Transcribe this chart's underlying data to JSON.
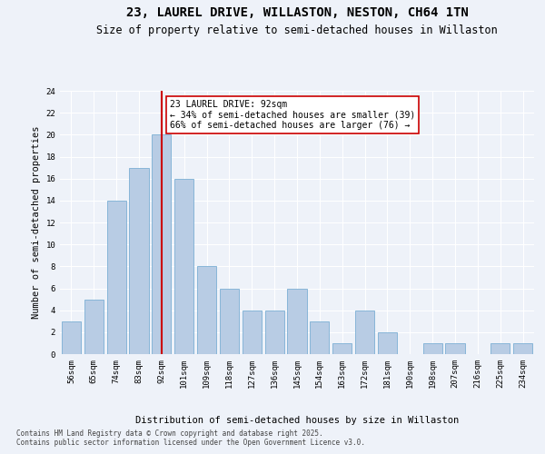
{
  "title_line1": "23, LAUREL DRIVE, WILLASTON, NESTON, CH64 1TN",
  "title_line2": "Size of property relative to semi-detached houses in Willaston",
  "xlabel": "Distribution of semi-detached houses by size in Willaston",
  "ylabel": "Number of semi-detached properties",
  "categories": [
    "56sqm",
    "65sqm",
    "74sqm",
    "83sqm",
    "92sqm",
    "101sqm",
    "109sqm",
    "118sqm",
    "127sqm",
    "136sqm",
    "145sqm",
    "154sqm",
    "163sqm",
    "172sqm",
    "181sqm",
    "190sqm",
    "198sqm",
    "207sqm",
    "216sqm",
    "225sqm",
    "234sqm"
  ],
  "values": [
    3,
    5,
    14,
    17,
    20,
    16,
    8,
    6,
    4,
    4,
    6,
    3,
    1,
    4,
    2,
    0,
    1,
    1,
    0,
    1,
    1
  ],
  "bar_color": "#b8cce4",
  "bar_edgecolor": "#7bafd4",
  "property_label": "23 LAUREL DRIVE: 92sqm",
  "pct_smaller": 34,
  "count_smaller": 39,
  "pct_larger": 66,
  "count_larger": 76,
  "vline_color": "#cc0000",
  "vline_index": 4,
  "annotation_box_edgecolor": "#cc0000",
  "ylim": [
    0,
    24
  ],
  "yticks": [
    0,
    2,
    4,
    6,
    8,
    10,
    12,
    14,
    16,
    18,
    20,
    22,
    24
  ],
  "bg_color": "#eef2f9",
  "grid_color": "#ffffff",
  "footer": "Contains HM Land Registry data © Crown copyright and database right 2025.\nContains public sector information licensed under the Open Government Licence v3.0.",
  "title_fontsize": 10,
  "subtitle_fontsize": 8.5,
  "axis_label_fontsize": 7.5,
  "tick_fontsize": 6.5,
  "annotation_fontsize": 7
}
